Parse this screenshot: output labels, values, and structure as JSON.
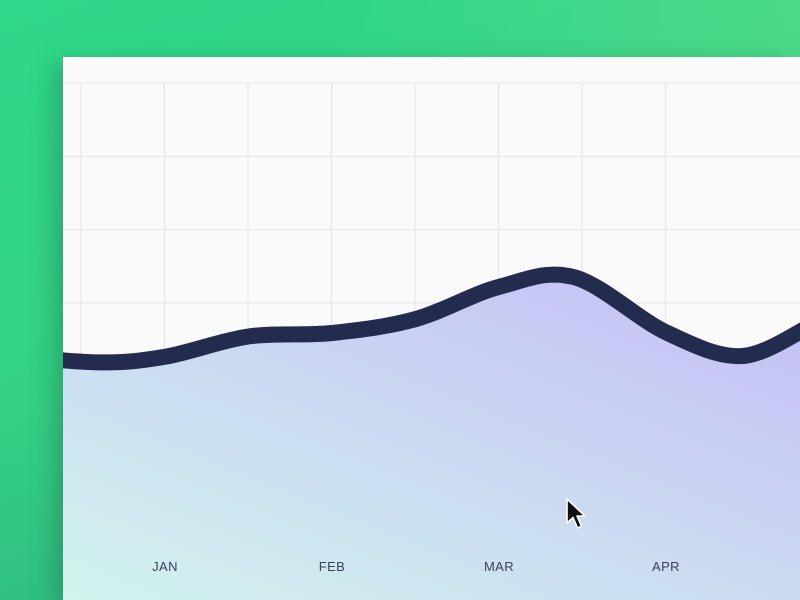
{
  "colors": {
    "background": "#33d487",
    "card": "#fafafa",
    "line": "#232c4f",
    "grid": "#e4e4e8",
    "fill_start": "#d2f6ee",
    "fill_end": "#c4bdf5",
    "tick_label": "#3a3f5a"
  },
  "chart_data": {
    "type": "area",
    "categories": [
      "JAN",
      "FEB",
      "MAR",
      "APR"
    ],
    "x": [
      -0.95,
      -0.4,
      0,
      0.5,
      1.0,
      1.5,
      2.0,
      2.45,
      3.0,
      3.45,
      3.85
    ],
    "y": [
      2.4,
      2.3,
      2.38,
      2.67,
      2.72,
      2.92,
      3.38,
      3.52,
      2.73,
      2.39,
      2.8
    ],
    "ylim": [
      0,
      6.3
    ],
    "xlim": [
      -1.07,
      3.85
    ],
    "grid": true,
    "smooth": true,
    "legend": "none"
  },
  "icons": {
    "cursor": "arrow-cursor-icon"
  }
}
